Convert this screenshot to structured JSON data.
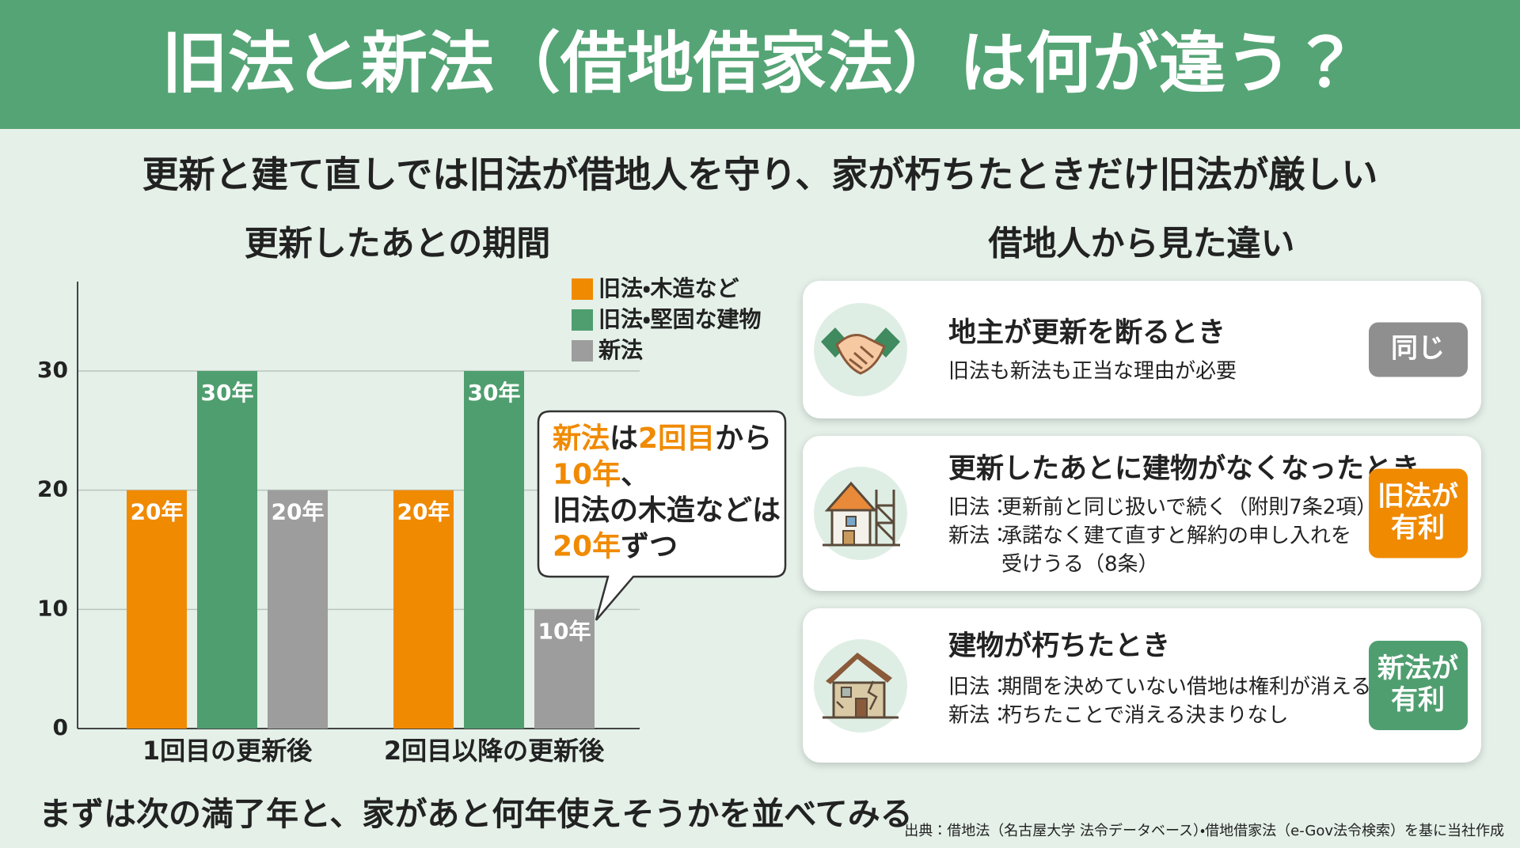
{
  "header": {
    "title": "旧法と新法（借地借家法）は何が違う？"
  },
  "subtitle": "更新と建て直しでは旧法が借地人を守り、家が朽ちたときだけ旧法が厳しい",
  "chart_data": {
    "type": "bar",
    "title": "更新したあとの期間",
    "categories": [
      "1回目の更新後",
      "2回目以降の更新後"
    ],
    "series": [
      {
        "name": "旧法・木造など",
        "color": "#f08a00",
        "values": [
          20,
          20
        ],
        "value_labels": [
          "20年",
          "20年"
        ]
      },
      {
        "name": "旧法・堅固な建物",
        "color": "#4f9e6f",
        "values": [
          30,
          30
        ],
        "value_labels": [
          "30年",
          "30年"
        ]
      },
      {
        "name": "新法",
        "color": "#9d9d9d",
        "values": [
          20,
          10
        ],
        "value_labels": [
          "20年",
          "10年"
        ]
      }
    ],
    "ylim": [
      0,
      37.5
    ],
    "yticks": [
      0,
      10,
      20,
      30
    ],
    "grid": true,
    "legend": "top-right",
    "annotation": [
      [
        {
          "text": "新法",
          "color": "#f08a00"
        },
        {
          "text": "は"
        },
        {
          "text": "2回目",
          "color": "#f08a00"
        },
        {
          "text": "から"
        }
      ],
      [
        {
          "text": "10年",
          "color": "#f08a00"
        },
        {
          "text": "、"
        }
      ],
      [
        {
          "text": "旧法の木造などは"
        }
      ],
      [
        {
          "text": "20年",
          "color": "#f08a00"
        },
        {
          "text": "ずつ"
        }
      ]
    ]
  },
  "comparison": {
    "title": "借地人から見た違い",
    "items": [
      {
        "title": "地主が更新を断るとき",
        "lines": [
          {
            "text": [
              "旧法も新法も正当な理由が必要"
            ]
          }
        ],
        "badge": {
          "text": [
            "同じ"
          ],
          "color": "#8f8f8f"
        }
      },
      {
        "title": "更新したあとに建物がなくなったとき",
        "lines": [
          {
            "label": "旧法：",
            "text": [
              "更新前と同じ扱いで続く（附則7条2項）"
            ]
          },
          {
            "label": "新法：",
            "text": [
              "承諾なく建て直すと解約の申し入れを",
              "受けうる（8条）"
            ]
          }
        ],
        "badge": {
          "text": [
            "旧法が",
            "有利"
          ],
          "color": "#f08a00"
        }
      },
      {
        "title": "建物が朽ちたとき",
        "lines": [
          {
            "label": "旧法：",
            "text": [
              "期間を決めていない借地は権利が消える"
            ]
          },
          {
            "label": "新法：",
            "text": [
              "朽ちたことで消える決まりなし"
            ]
          }
        ],
        "badge": {
          "text": [
            "新法が",
            "有利"
          ],
          "color": "#4f9e6f"
        }
      }
    ]
  },
  "footer": {
    "note": "まずは次の満了年と、家があと何年使えそうかを並べてみる",
    "source": "出典：借地法（名古屋大学 法令データベース）・借地借家法（e-Gov法令検索）を基に当社作成"
  }
}
